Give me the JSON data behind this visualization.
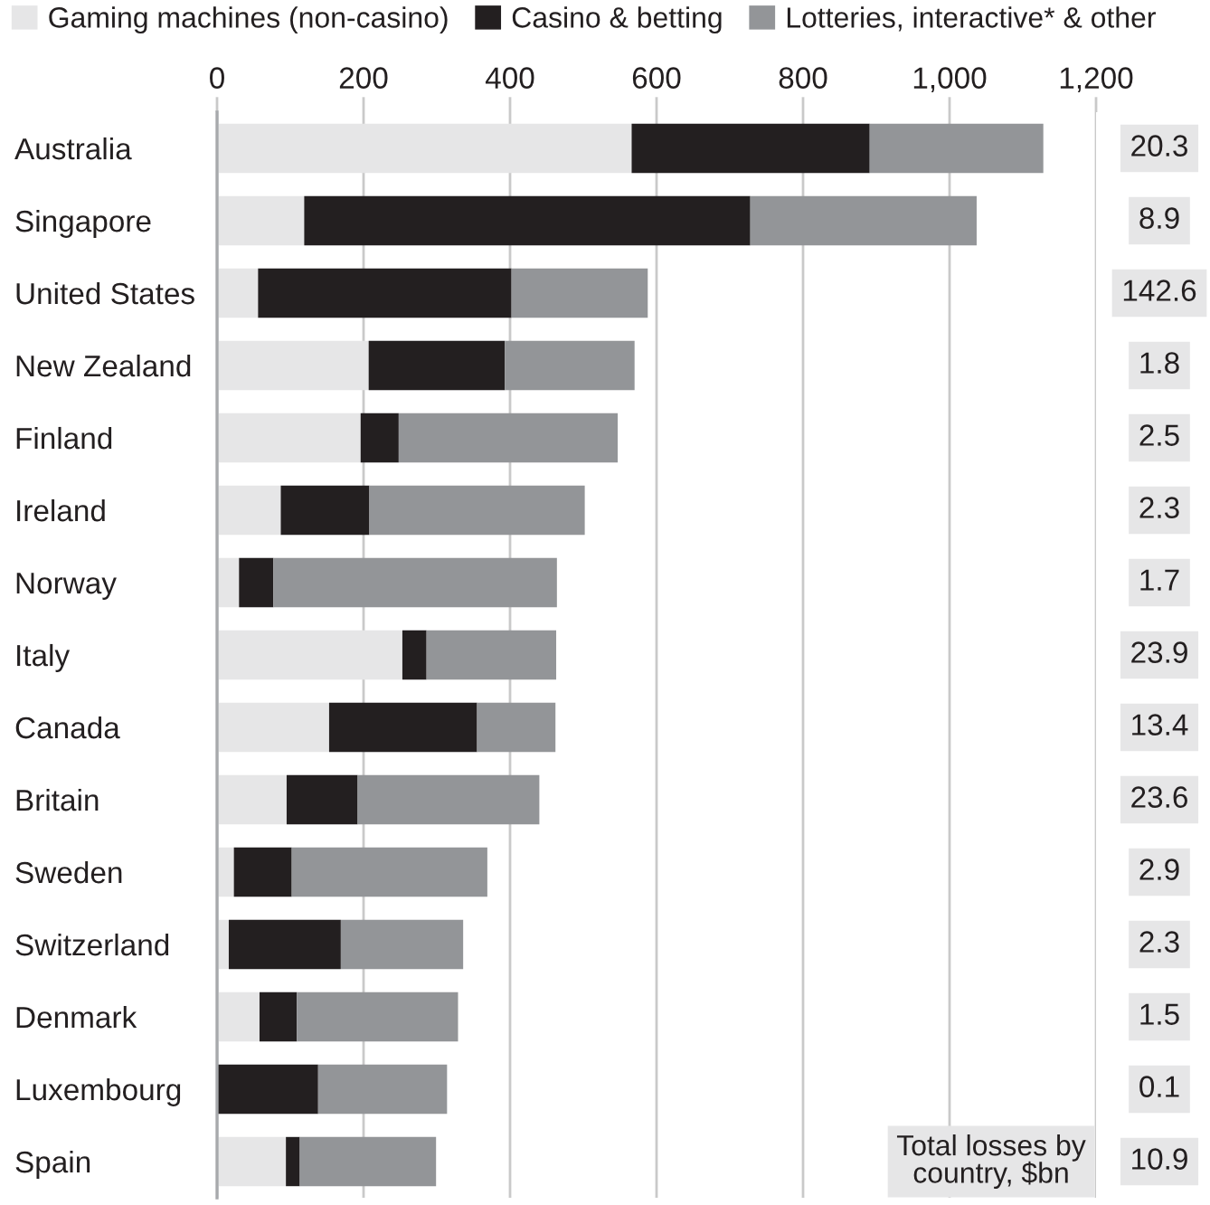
{
  "chart_data": {
    "type": "bar",
    "orientation": "horizontal",
    "stacked": true,
    "categories": [
      "Australia",
      "Singapore",
      "United States",
      "New Zealand",
      "Finland",
      "Ireland",
      "Norway",
      "Italy",
      "Canada",
      "Britain",
      "Sweden",
      "Switzerland",
      "Denmark",
      "Luxembourg",
      "Spain"
    ],
    "series": [
      {
        "name": "Gaming machines (non-casino)",
        "color": "#e6e6e7",
        "values": [
          566,
          119,
          56,
          207,
          196,
          87,
          30,
          253,
          153,
          95,
          23,
          16,
          58,
          0,
          94
        ]
      },
      {
        "name": "Casino & betting",
        "color": "#231f20",
        "values": [
          325,
          609,
          346,
          186,
          52,
          121,
          47,
          33,
          202,
          97,
          79,
          153,
          51,
          138,
          19
        ]
      },
      {
        "name": "Lotteries, interactive* & other",
        "color": "#939598",
        "values": [
          237,
          309,
          186,
          177,
          299,
          294,
          387,
          177,
          107,
          248,
          267,
          167,
          220,
          176,
          186
        ]
      }
    ],
    "xlim": [
      0,
      1200
    ],
    "xticks": [
      0,
      200,
      400,
      600,
      800,
      {
        "value": 1000,
        "label": "1,000"
      },
      {
        "value": 1200,
        "label": "1,200"
      }
    ],
    "grid": "x",
    "legend": "top left",
    "annotations": [
      "20.3",
      "8.9",
      "142.6",
      "1.8",
      "2.5",
      "2.3",
      "1.7",
      "23.9",
      "13.4",
      "23.6",
      "2.9",
      "2.3",
      "1.5",
      "0.1",
      "10.9",
      "Total losses by\ncountry, $bn"
    ]
  }
}
